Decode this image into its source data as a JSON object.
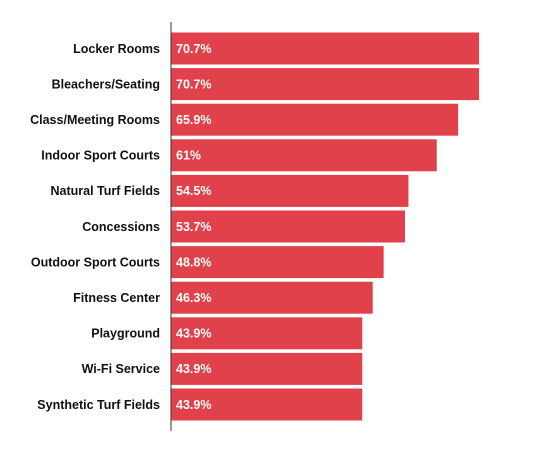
{
  "chart_data": {
    "type": "hbar",
    "categories": [
      "Locker Rooms",
      "Bleachers/Seating",
      "Class/Meeting Rooms",
      "Indoor Sport Courts",
      "Natural Turf Fields",
      "Concessions",
      "Outdoor Sport Courts",
      "Fitness Center",
      "Playground",
      "Wi-Fi Service",
      "Synthetic Turf Fields"
    ],
    "values": [
      70.7,
      70.7,
      65.9,
      61,
      54.5,
      53.7,
      48.8,
      46.3,
      43.9,
      43.9,
      43.9
    ],
    "value_labels": [
      "70.7%",
      "70.7%",
      "65.9%",
      "61%",
      "54.5%",
      "53.7%",
      "48.8%",
      "46.3%",
      "43.9%",
      "43.9%",
      "43.9%"
    ],
    "color": "#e0414b"
  }
}
